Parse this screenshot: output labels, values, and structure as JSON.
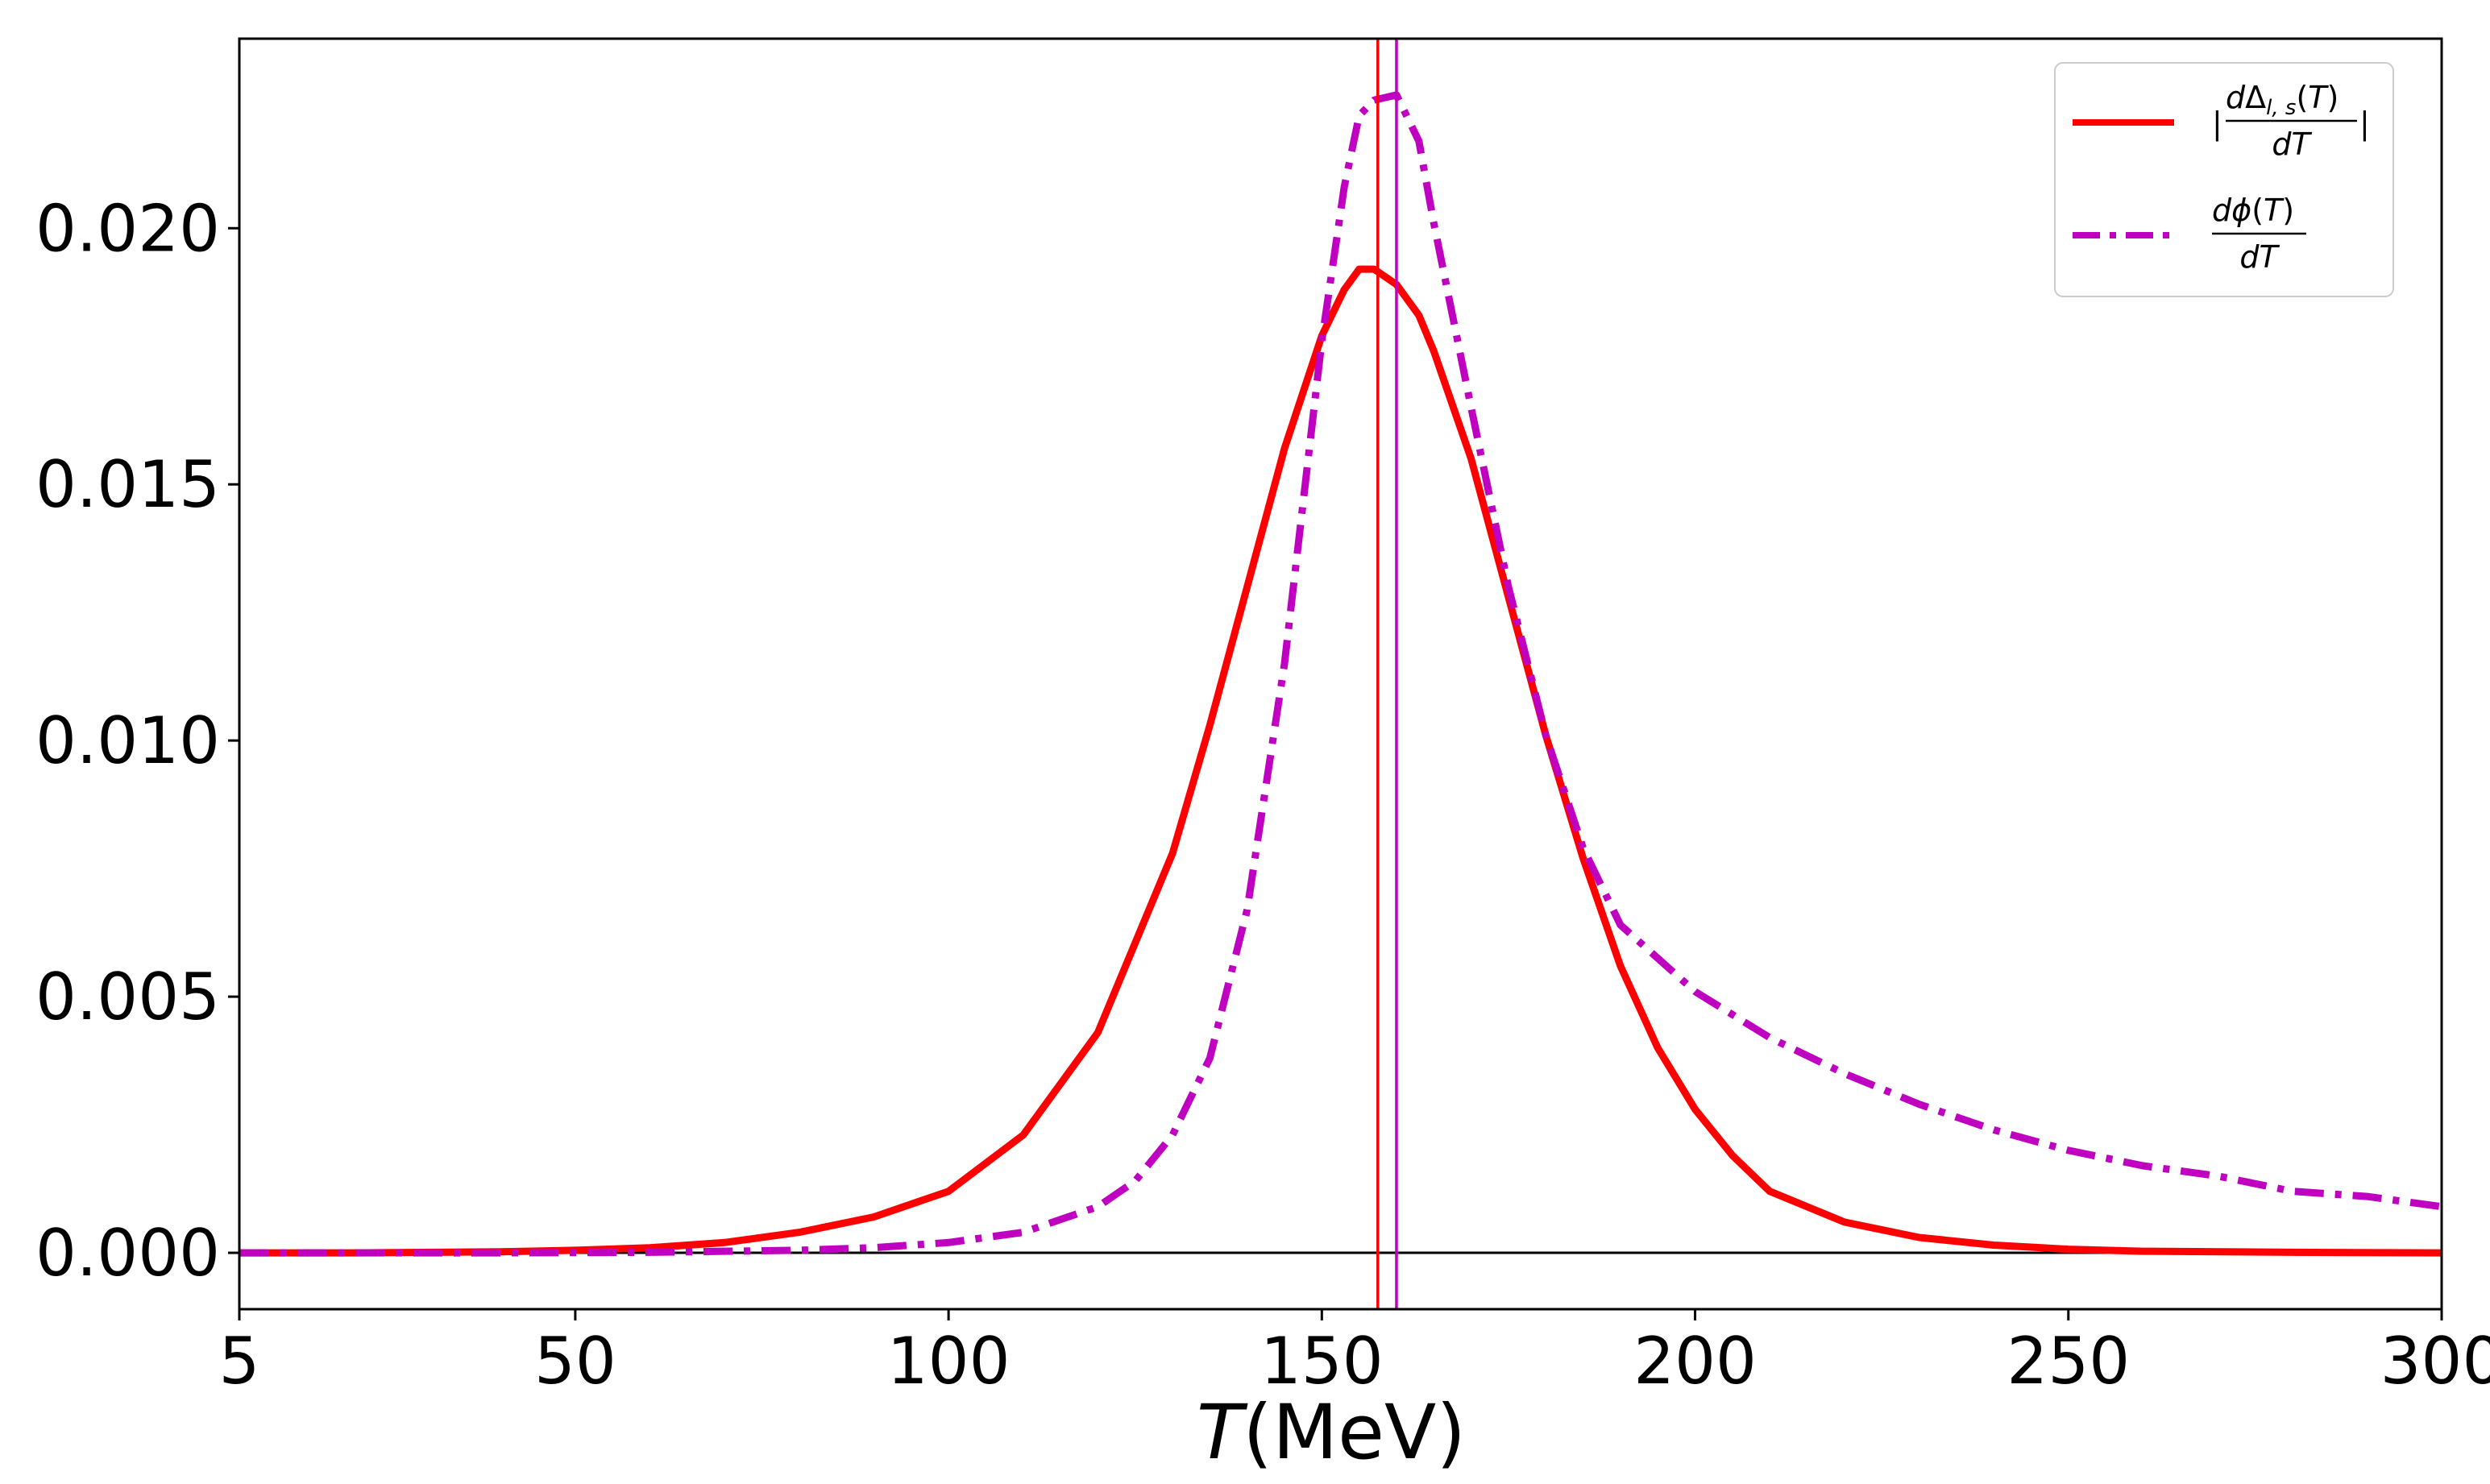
{
  "chart_data": {
    "type": "line",
    "title": "",
    "xlabel_var": "T",
    "xlabel_unit": "(MeV)",
    "ylabel": "",
    "xlim": [
      5,
      300
    ],
    "ylim": [
      -0.0011,
      0.0237
    ],
    "xticks": [
      5,
      50,
      100,
      150,
      200,
      250,
      300
    ],
    "xtick_labels": [
      "5",
      "50",
      "100",
      "150",
      "200",
      "250",
      "300"
    ],
    "yticks": [
      0.0,
      0.005,
      0.01,
      0.015,
      0.02
    ],
    "ytick_labels": [
      "0.000",
      "0.005",
      "0.010",
      "0.015",
      "0.020"
    ],
    "legend_position": "top-right",
    "hline": {
      "y": 0.0,
      "color": "#000000"
    },
    "vlines": [
      {
        "x": 157.5,
        "color": "#ff0000"
      },
      {
        "x": 160.0,
        "color": "#c000c0"
      }
    ],
    "series": [
      {
        "name": "|dΔl,s(T)/dT|",
        "legend_numerator_parts": [
          "d",
          "Δ",
          "l, s",
          "(",
          "T",
          ")"
        ],
        "legend_denominator": "dT",
        "style": "solid",
        "color": "#ff0000",
        "x": [
          5,
          20,
          40,
          50,
          60,
          70,
          80,
          90,
          100,
          110,
          120,
          130,
          135,
          140,
          145,
          150,
          153,
          155,
          157,
          160,
          163,
          165,
          170,
          175,
          180,
          185,
          190,
          195,
          200,
          205,
          210,
          220,
          230,
          240,
          250,
          260,
          280,
          300
        ],
        "values": [
          0.0,
          0.0,
          2e-05,
          5e-05,
          0.0001,
          0.0002,
          0.0004,
          0.0007,
          0.0012,
          0.0023,
          0.0043,
          0.0078,
          0.0103,
          0.013,
          0.0157,
          0.0179,
          0.0188,
          0.0192,
          0.0192,
          0.0189,
          0.0183,
          0.0176,
          0.0155,
          0.0128,
          0.0101,
          0.0077,
          0.0056,
          0.004,
          0.0028,
          0.0019,
          0.0012,
          0.0006,
          0.0003,
          0.00015,
          7e-05,
          3e-05,
          1e-05,
          0.0
        ]
      },
      {
        "name": "dφ(T)/dT",
        "legend_numerator_parts": [
          "d",
          "ϕ",
          "",
          "(",
          "T",
          ")"
        ],
        "legend_denominator": "dT",
        "style": "dashdot",
        "color": "#c000c0",
        "x": [
          5,
          40,
          60,
          80,
          90,
          100,
          110,
          120,
          125,
          130,
          135,
          140,
          145,
          150,
          153,
          155,
          157,
          160,
          163,
          165,
          170,
          175,
          180,
          185,
          190,
          200,
          210,
          220,
          230,
          240,
          250,
          260,
          270,
          280,
          290,
          300
        ],
        "values": [
          0.0,
          0.0,
          1e-05,
          5e-05,
          0.0001,
          0.0002,
          0.0004,
          0.0009,
          0.0014,
          0.0023,
          0.0038,
          0.0067,
          0.0115,
          0.0178,
          0.0208,
          0.0222,
          0.0225,
          0.0226,
          0.0217,
          0.0201,
          0.0165,
          0.013,
          0.0101,
          0.0079,
          0.0064,
          0.0051,
          0.0042,
          0.0035,
          0.0029,
          0.0024,
          0.002,
          0.0017,
          0.0015,
          0.0012,
          0.0011,
          0.0009
        ]
      }
    ]
  }
}
